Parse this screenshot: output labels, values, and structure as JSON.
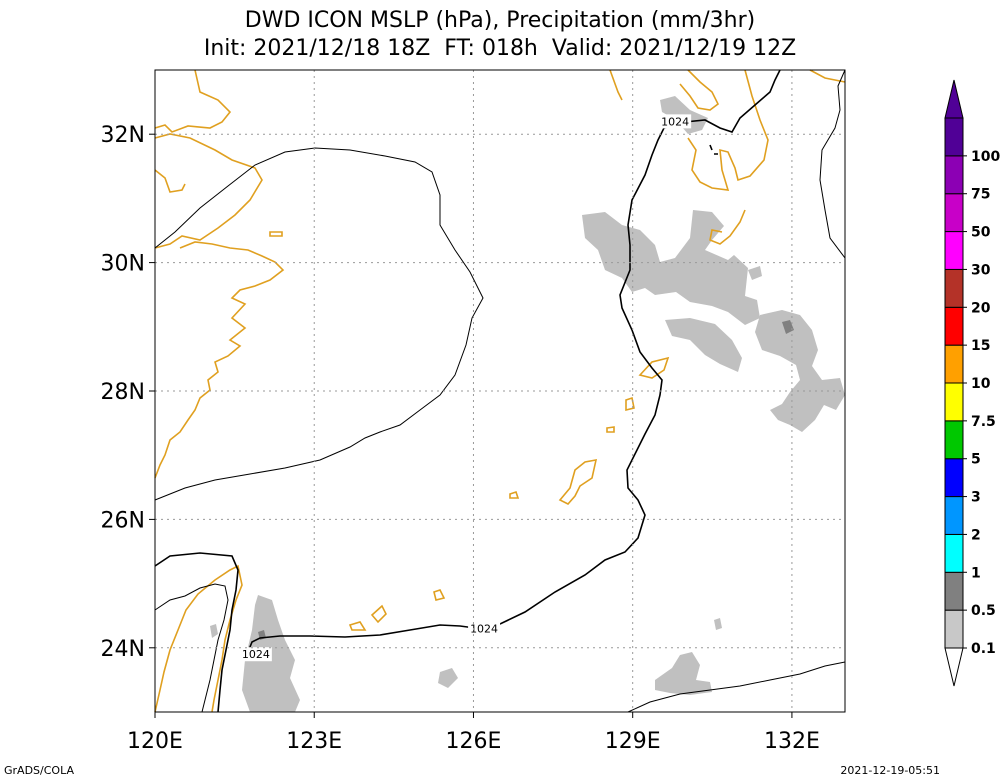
{
  "title": {
    "line1": "DWD ICON MSLP (hPa), Precipitation (mm/3hr)",
    "line2": "Init: 2021/12/18 18Z  FT: 018h  Valid: 2021/12/19 12Z"
  },
  "footer": {
    "left": "GrADS/COLA",
    "right": "2021-12-19-05:51"
  },
  "colors": {
    "coastline": "#e0a020",
    "isobar": "#000000",
    "precip_light": "#c0c0c0",
    "precip_dark": "#808080",
    "grid": "#999999"
  },
  "chart_data": {
    "type": "map",
    "lon_range": [
      120,
      133
    ],
    "lat_range": [
      23,
      33
    ],
    "x_ticks": [
      {
        "value": 120,
        "label": "120E"
      },
      {
        "value": 123,
        "label": "123E"
      },
      {
        "value": 126,
        "label": "126E"
      },
      {
        "value": 129,
        "label": "129E"
      },
      {
        "value": 132,
        "label": "132E"
      }
    ],
    "y_ticks": [
      {
        "value": 24,
        "label": "24N"
      },
      {
        "value": 26,
        "label": "26N"
      },
      {
        "value": 28,
        "label": "28N"
      },
      {
        "value": 30,
        "label": "30N"
      },
      {
        "value": 32,
        "label": "32N"
      }
    ],
    "grid": true,
    "isobar_labels": [
      {
        "text": "1024",
        "lon": 126.2,
        "lat": 24.3
      },
      {
        "text": "1024",
        "lon": 121.9,
        "lat": 23.9
      },
      {
        "text": "1024",
        "lon": 129.8,
        "lat": 32.2
      }
    ],
    "colorbar": {
      "levels": [
        "0.1",
        "0.5",
        "1",
        "2",
        "3",
        "5",
        "7.5",
        "10",
        "15",
        "20",
        "30",
        "50",
        "75",
        "100"
      ],
      "colors": [
        "#c8c8c8",
        "#808080",
        "#00ffff",
        "#0096ff",
        "#0000ff",
        "#00c800",
        "#ffff00",
        "#ffa000",
        "#ff0000",
        "#b43228",
        "#ff00ff",
        "#c800c8",
        "#8c00b4",
        "#500096"
      ],
      "under_color": "#ffffff",
      "over_color": "#500096"
    }
  }
}
